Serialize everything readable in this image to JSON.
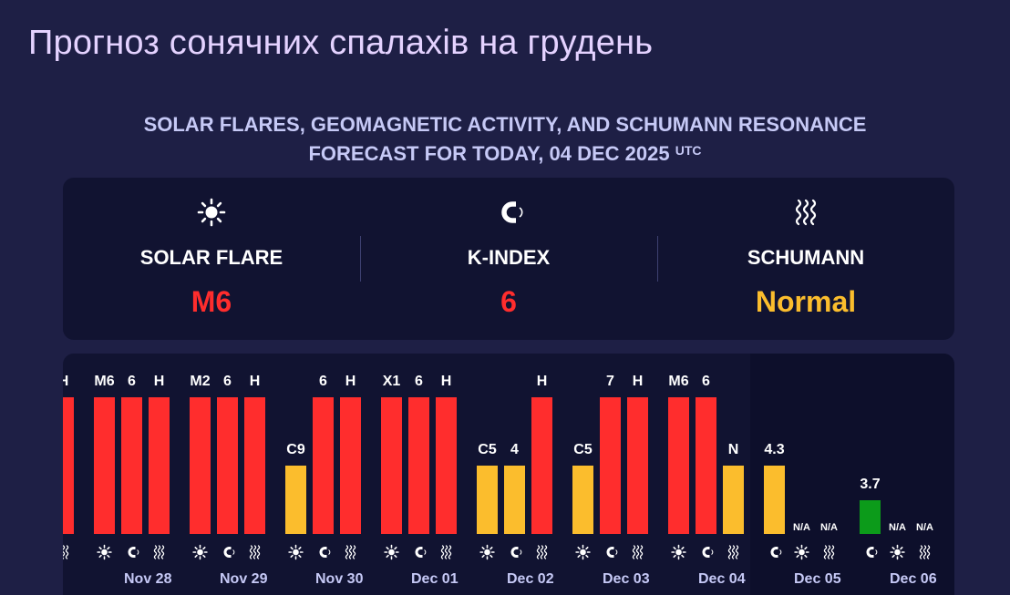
{
  "page": {
    "title": "Прогноз сонячних спалахів на грудень",
    "subtitle_line1": "SOLAR FLARES, GEOMAGNETIC ACTIVITY, AND SCHUMANN RESONANCE",
    "subtitle_line2": "FORECAST FOR TODAY, 04 DEC 2025",
    "subtitle_sup": "UTC"
  },
  "summary": [
    {
      "icon": "sun-icon",
      "label": "SOLAR FLARE",
      "value": "M6",
      "color": "#ff2d2d"
    },
    {
      "icon": "magnet-icon",
      "label": "K-INDEX",
      "value": "6",
      "color": "#ff2d2d"
    },
    {
      "icon": "waves-icon",
      "label": "SCHUMANN",
      "value": "Normal",
      "color": "#fbbd2d"
    }
  ],
  "colors": {
    "red": "#ff2d2d",
    "yellow": "#fbbd2d",
    "green": "#0c9b1a"
  },
  "chart_data": {
    "type": "bar",
    "days": [
      {
        "date": "",
        "bars": [
          {
            "metric": "schumann",
            "label": "H",
            "level": "high",
            "icon": "waves-icon"
          }
        ]
      },
      {
        "date": "Nov 28",
        "bars": [
          {
            "metric": "flare",
            "label": "M6",
            "level": "high",
            "icon": "sun-icon"
          },
          {
            "metric": "kindex",
            "label": "6",
            "level": "high",
            "icon": "magnet-icon"
          },
          {
            "metric": "schumann",
            "label": "H",
            "level": "high",
            "icon": "waves-icon"
          }
        ]
      },
      {
        "date": "Nov 29",
        "bars": [
          {
            "metric": "flare",
            "label": "M2",
            "level": "high",
            "icon": "sun-icon"
          },
          {
            "metric": "kindex",
            "label": "6",
            "level": "high",
            "icon": "magnet-icon"
          },
          {
            "metric": "schumann",
            "label": "H",
            "level": "high",
            "icon": "waves-icon"
          }
        ]
      },
      {
        "date": "Nov 30",
        "bars": [
          {
            "metric": "flare",
            "label": "C9",
            "level": "medium",
            "icon": "sun-icon"
          },
          {
            "metric": "kindex",
            "label": "6",
            "level": "high",
            "icon": "magnet-icon"
          },
          {
            "metric": "schumann",
            "label": "H",
            "level": "high",
            "icon": "waves-icon"
          }
        ]
      },
      {
        "date": "Dec 01",
        "bars": [
          {
            "metric": "flare",
            "label": "X1",
            "level": "high",
            "icon": "sun-icon"
          },
          {
            "metric": "kindex",
            "label": "6",
            "level": "high",
            "icon": "magnet-icon"
          },
          {
            "metric": "schumann",
            "label": "H",
            "level": "high",
            "icon": "waves-icon"
          }
        ]
      },
      {
        "date": "Dec 02",
        "bars": [
          {
            "metric": "flare",
            "label": "C5",
            "level": "medium",
            "icon": "sun-icon"
          },
          {
            "metric": "kindex",
            "label": "4",
            "level": "medium",
            "icon": "magnet-icon"
          },
          {
            "metric": "schumann",
            "label": "H",
            "level": "high",
            "icon": "waves-icon"
          }
        ]
      },
      {
        "date": "Dec 03",
        "bars": [
          {
            "metric": "flare",
            "label": "C5",
            "level": "medium",
            "icon": "sun-icon"
          },
          {
            "metric": "kindex",
            "label": "7",
            "level": "high",
            "icon": "magnet-icon"
          },
          {
            "metric": "schumann",
            "label": "H",
            "level": "high",
            "icon": "waves-icon"
          }
        ]
      },
      {
        "date": "Dec 04",
        "bars": [
          {
            "metric": "flare",
            "label": "M6",
            "level": "high",
            "icon": "sun-icon"
          },
          {
            "metric": "kindex",
            "label": "6",
            "level": "high",
            "icon": "magnet-icon"
          },
          {
            "metric": "schumann",
            "label": "N",
            "level": "medium",
            "icon": "waves-icon"
          }
        ]
      },
      {
        "date": "Dec 05",
        "bars": [
          {
            "metric": "kindex",
            "label": "4.3",
            "level": "medium",
            "icon": "magnet-icon"
          },
          {
            "metric": "flare",
            "label": "N/A",
            "level": "none",
            "icon": "sun-icon"
          },
          {
            "metric": "schumann",
            "label": "N/A",
            "level": "none",
            "icon": "waves-icon"
          }
        ]
      },
      {
        "date": "Dec 06",
        "bars": [
          {
            "metric": "kindex",
            "label": "3.7",
            "level": "low",
            "icon": "magnet-icon"
          },
          {
            "metric": "flare",
            "label": "N/A",
            "level": "none",
            "icon": "sun-icon"
          },
          {
            "metric": "schumann",
            "label": "N/A",
            "level": "none",
            "icon": "waves-icon"
          }
        ]
      }
    ]
  }
}
